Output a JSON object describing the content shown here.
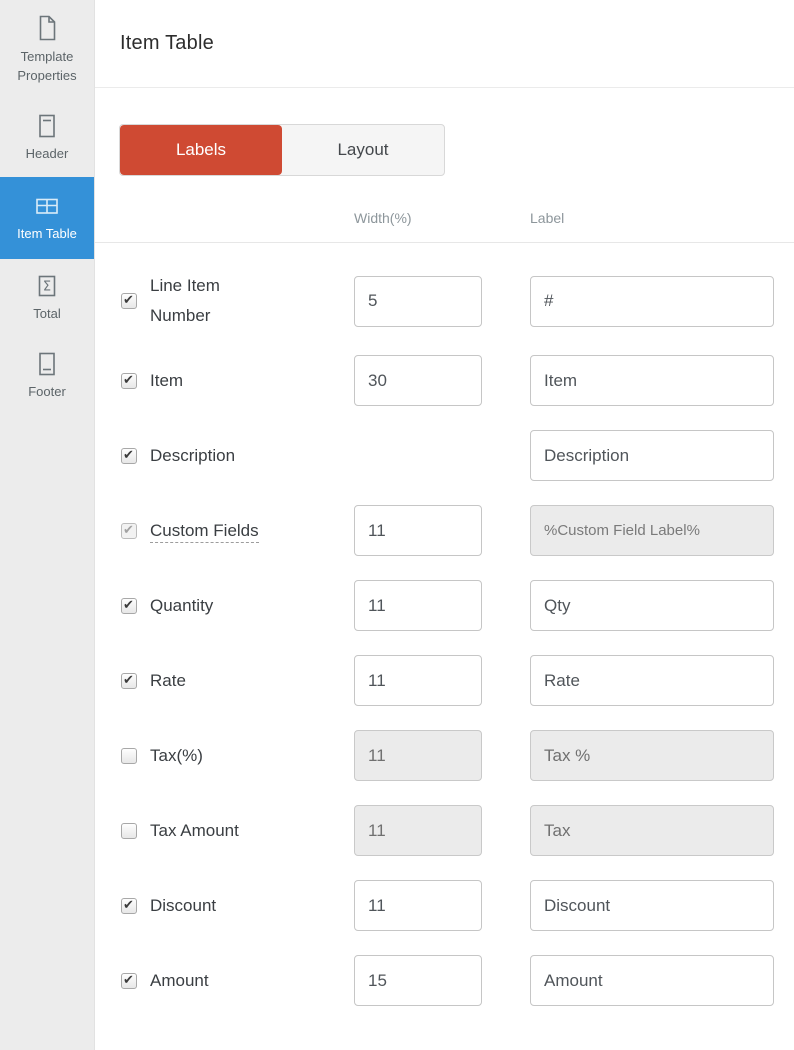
{
  "sidebar": {
    "items": [
      {
        "label": "Template Properties",
        "icon": "document-icon",
        "active": false
      },
      {
        "label": "Header",
        "icon": "header-icon",
        "active": false
      },
      {
        "label": "Item Table",
        "icon": "table-icon",
        "active": true
      },
      {
        "label": "Total",
        "icon": "sigma-icon",
        "active": false
      },
      {
        "label": "Footer",
        "icon": "footer-icon",
        "active": false
      }
    ]
  },
  "header": {
    "title": "Item Table"
  },
  "tabs": [
    {
      "label": "Labels",
      "active": true
    },
    {
      "label": "Layout",
      "active": false
    }
  ],
  "columns": {
    "width": "Width(%)",
    "label": "Label"
  },
  "rows": [
    {
      "name": "Line Item Number",
      "checked": true,
      "checkbox_disabled": false,
      "underline": false,
      "width": "5",
      "width_disabled": false,
      "label": "#",
      "label_disabled": false,
      "label_small": false
    },
    {
      "name": "Item",
      "checked": true,
      "checkbox_disabled": false,
      "underline": false,
      "width": "30",
      "width_disabled": false,
      "label": "Item",
      "label_disabled": false,
      "label_small": false
    },
    {
      "name": "Description",
      "checked": true,
      "checkbox_disabled": false,
      "underline": false,
      "width": null,
      "width_disabled": false,
      "label": "Description",
      "label_disabled": false,
      "label_small": false
    },
    {
      "name": "Custom Fields",
      "checked": true,
      "checkbox_disabled": true,
      "underline": true,
      "width": "11",
      "width_disabled": false,
      "label": "%Custom Field Label%",
      "label_disabled": true,
      "label_small": true
    },
    {
      "name": "Quantity",
      "checked": true,
      "checkbox_disabled": false,
      "underline": false,
      "width": "11",
      "width_disabled": false,
      "label": "Qty",
      "label_disabled": false,
      "label_small": false
    },
    {
      "name": "Rate",
      "checked": true,
      "checkbox_disabled": false,
      "underline": false,
      "width": "11",
      "width_disabled": false,
      "label": "Rate",
      "label_disabled": false,
      "label_small": false
    },
    {
      "name": "Tax(%)",
      "checked": false,
      "checkbox_disabled": false,
      "underline": false,
      "width": "11",
      "width_disabled": true,
      "label": "Tax %",
      "label_disabled": true,
      "label_small": false
    },
    {
      "name": "Tax Amount",
      "checked": false,
      "checkbox_disabled": false,
      "underline": false,
      "width": "11",
      "width_disabled": true,
      "label": "Tax",
      "label_disabled": true,
      "label_small": false
    },
    {
      "name": "Discount",
      "checked": true,
      "checkbox_disabled": false,
      "underline": false,
      "width": "11",
      "width_disabled": false,
      "label": "Discount",
      "label_disabled": false,
      "label_small": false
    },
    {
      "name": "Amount",
      "checked": true,
      "checkbox_disabled": false,
      "underline": false,
      "width": "15",
      "width_disabled": false,
      "label": "Amount",
      "label_disabled": false,
      "label_small": false
    }
  ],
  "colors": {
    "accent_blue": "#3491d8",
    "accent_red": "#cf4a33",
    "sidebar_bg": "#ececec",
    "disabled_input_bg": "#ebebeb"
  }
}
